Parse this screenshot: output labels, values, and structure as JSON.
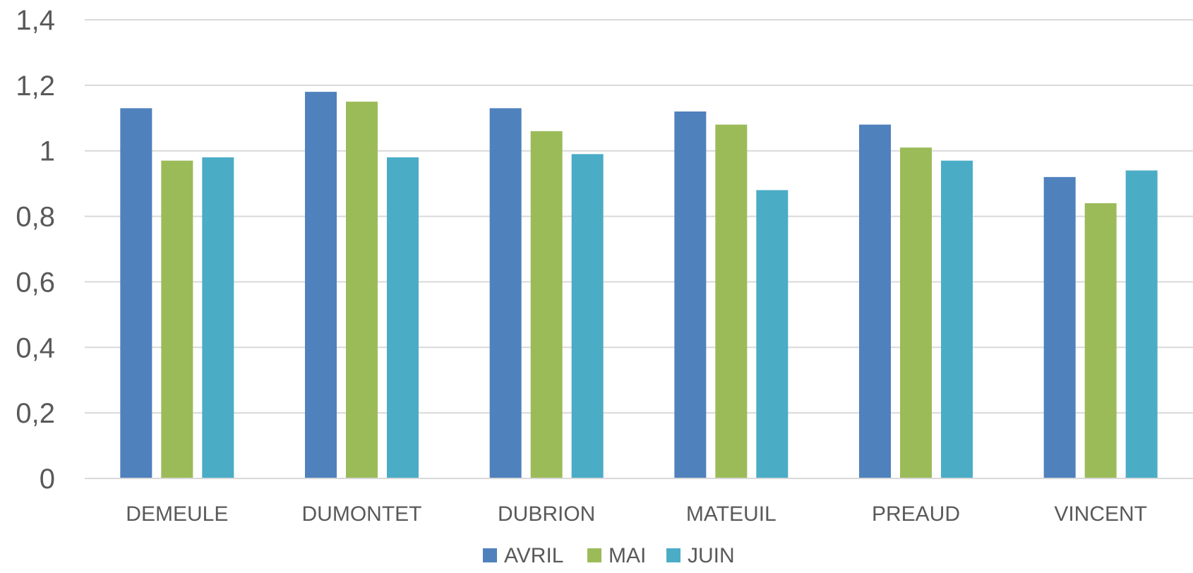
{
  "chart_data": {
    "type": "bar",
    "title": "",
    "xlabel": "",
    "ylabel": "",
    "categories": [
      "DEMEULE",
      "DUMONTET",
      "DUBRION",
      "MATEUIL",
      "PREAUD",
      "VINCENT"
    ],
    "series": [
      {
        "name": "AVRIL",
        "color": "#4f81bd",
        "values": [
          1.13,
          1.18,
          1.13,
          1.12,
          1.08,
          0.92
        ]
      },
      {
        "name": "MAI",
        "color": "#9bbb59",
        "values": [
          0.97,
          1.15,
          1.06,
          1.08,
          1.01,
          0.84
        ]
      },
      {
        "name": "JUIN",
        "color": "#4bacc6",
        "values": [
          0.98,
          0.98,
          0.99,
          0.88,
          0.97,
          0.94
        ]
      }
    ],
    "ylim": [
      0,
      1.4
    ],
    "yticks": [
      0,
      0.2,
      0.4,
      0.6,
      0.8,
      1,
      1.2,
      1.4
    ],
    "ytick_labels": [
      "0",
      "0,2",
      "0,4",
      "0,6",
      "0,8",
      "1",
      "1,2",
      "1,4"
    ],
    "grid": true,
    "legend_position": "bottom"
  }
}
